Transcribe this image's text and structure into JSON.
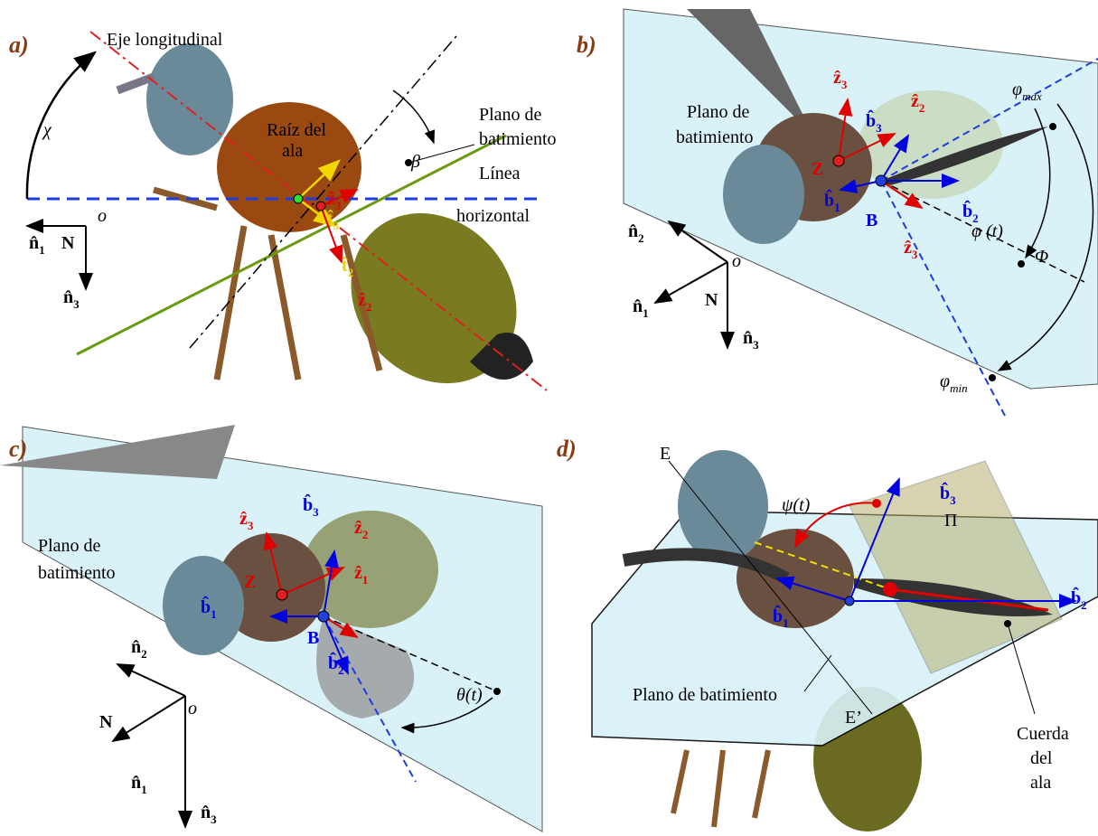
{
  "panels": [
    {
      "letter": "a)",
      "texts": [
        "Eje longitudinal",
        "χ",
        "Raíz del",
        "ala",
        "β",
        "Plano de",
        "batimiento",
        "Línea",
        "horizontal",
        "o",
        "N"
      ],
      "symbols": [
        {
          "base": "n̂",
          "sub": "1"
        },
        {
          "base": "n̂",
          "sub": "3"
        },
        {
          "base": "t̂",
          "sub": "3"
        },
        {
          "base": "t̂",
          "sub": "2"
        },
        {
          "base": "ẑ",
          "sub": "3"
        },
        {
          "base": "ẑ",
          "sub": "2"
        }
      ]
    },
    {
      "letter": "b)",
      "texts": [
        "Plano de",
        "batimiento",
        "Z",
        "B",
        "φ (t)",
        "Φ",
        "o",
        "N"
      ],
      "symbols": [
        {
          "base": "ẑ",
          "sub": "3"
        },
        {
          "base": "b̂",
          "sub": "3"
        },
        {
          "base": "ẑ",
          "sub": "2"
        },
        {
          "base": "b̂",
          "sub": "1"
        },
        {
          "base": "b̂",
          "sub": "2"
        },
        {
          "base": "ẑ",
          "sub": "3"
        },
        {
          "base": "φ",
          "sub": "max"
        },
        {
          "base": "φ",
          "sub": "min"
        },
        {
          "base": "n̂",
          "sub": "2"
        },
        {
          "base": "n̂",
          "sub": "1"
        },
        {
          "base": "n̂",
          "sub": "3"
        }
      ]
    },
    {
      "letter": "c)",
      "texts": [
        "Plano de",
        "batimiento",
        "Z",
        "B",
        "θ(t)",
        "o",
        "N"
      ],
      "symbols": [
        {
          "base": "ẑ",
          "sub": "3"
        },
        {
          "base": "b̂",
          "sub": "3"
        },
        {
          "base": "ẑ",
          "sub": "2"
        },
        {
          "base": "ẑ",
          "sub": "1"
        },
        {
          "base": "b̂",
          "sub": "1"
        },
        {
          "base": "b̂",
          "sub": "2"
        },
        {
          "base": "n̂",
          "sub": "2"
        },
        {
          "base": "n̂",
          "sub": "1"
        },
        {
          "base": "n̂",
          "sub": "3"
        }
      ]
    },
    {
      "letter": "d)",
      "texts": [
        "E",
        "ψ(t)",
        "Π",
        "Plano de batimiento",
        "E’",
        "Cuerda",
        "del",
        "ala"
      ],
      "symbols": [
        {
          "base": "b̂",
          "sub": "3"
        },
        {
          "base": "b̂",
          "sub": "1"
        },
        {
          "base": "b̂",
          "sub": "2"
        }
      ]
    }
  ]
}
